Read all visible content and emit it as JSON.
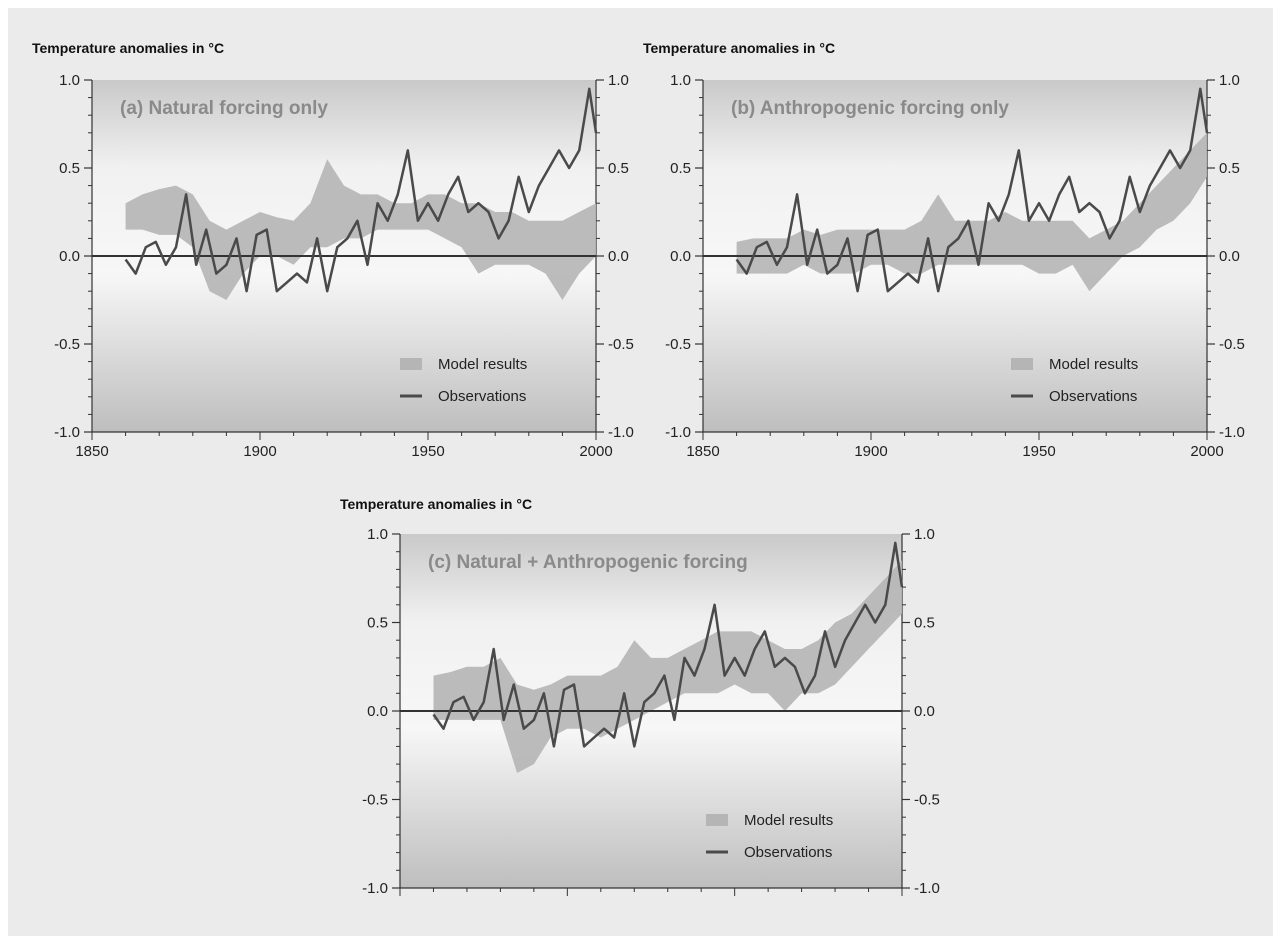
{
  "figure": {
    "panels": [
      {
        "id": "a",
        "ylabel": "Temperature anomalies in °C",
        "title": "(a) Natural forcing only",
        "legend": {
          "model": "Model results",
          "obs": "Observations"
        },
        "xticks": [
          "1850",
          "1900",
          "1950",
          "2000"
        ],
        "yticks": [
          "1.0",
          "0.5",
          "0.0",
          "-0.5",
          "-1.0"
        ]
      },
      {
        "id": "b",
        "ylabel": "Temperature anomalies in °C",
        "title": "(b) Anthropogenic forcing only",
        "legend": {
          "model": "Model results",
          "obs": "Observations"
        },
        "xticks": [
          "1850",
          "1900",
          "1950",
          "2000"
        ],
        "yticks": [
          "1.0",
          "0.5",
          "0.0",
          "-0.5",
          "-1.0"
        ]
      },
      {
        "id": "c",
        "ylabel": "Temperature anomalies in °C",
        "title": "(c) Natural + Anthropogenic forcing",
        "legend": {
          "model": "Model results",
          "obs": "Observations"
        },
        "xticks": [],
        "yticks": [
          "1.0",
          "0.5",
          "0.0",
          "-0.5",
          "-1.0"
        ]
      }
    ]
  },
  "chart_data": [
    {
      "type": "area",
      "title": "(a) Natural forcing only",
      "ylabel": "Temperature anomalies in °C",
      "xlim": [
        1850,
        2000
      ],
      "ylim": [
        -1.0,
        1.0
      ],
      "legend_position": "bottom-right",
      "colors": {
        "model": "#b5b5b5",
        "obs": "#4a4a4a"
      },
      "series": [
        {
          "name": "Model results",
          "kind": "band",
          "x": [
            1860,
            1865,
            1870,
            1875,
            1880,
            1885,
            1890,
            1895,
            1900,
            1905,
            1910,
            1915,
            1920,
            1925,
            1930,
            1935,
            1940,
            1945,
            1950,
            1955,
            1960,
            1965,
            1970,
            1975,
            1980,
            1985,
            1990,
            1995,
            2000
          ],
          "low": [
            0.15,
            0.15,
            0.12,
            0.12,
            0.05,
            -0.2,
            -0.25,
            -0.1,
            0.0,
            0.0,
            -0.05,
            0.05,
            0.05,
            0.1,
            0.1,
            0.15,
            0.15,
            0.15,
            0.15,
            0.1,
            0.05,
            -0.1,
            -0.05,
            -0.05,
            -0.05,
            -0.1,
            -0.25,
            -0.1,
            0.0
          ],
          "high": [
            0.3,
            0.35,
            0.38,
            0.4,
            0.35,
            0.2,
            0.15,
            0.2,
            0.25,
            0.22,
            0.2,
            0.3,
            0.55,
            0.4,
            0.35,
            0.35,
            0.3,
            0.3,
            0.35,
            0.35,
            0.3,
            0.3,
            0.25,
            0.25,
            0.2,
            0.2,
            0.2,
            0.25,
            0.3
          ]
        },
        {
          "name": "Observations",
          "kind": "line",
          "x": [
            1860,
            1863,
            1866,
            1869,
            1872,
            1875,
            1878,
            1881,
            1884,
            1887,
            1890,
            1893,
            1896,
            1899,
            1902,
            1905,
            1908,
            1911,
            1914,
            1917,
            1920,
            1923,
            1926,
            1929,
            1932,
            1935,
            1938,
            1941,
            1944,
            1947,
            1950,
            1953,
            1956,
            1959,
            1962,
            1965,
            1968,
            1971,
            1974,
            1977,
            1980,
            1983,
            1986,
            1989,
            1992,
            1995,
            1998,
            2000
          ],
          "y": [
            -0.02,
            -0.1,
            0.05,
            0.08,
            -0.05,
            0.05,
            0.35,
            -0.05,
            0.15,
            -0.1,
            -0.05,
            0.1,
            -0.2,
            0.12,
            0.15,
            -0.2,
            -0.15,
            -0.1,
            -0.15,
            0.1,
            -0.2,
            0.05,
            0.1,
            0.2,
            -0.05,
            0.3,
            0.2,
            0.35,
            0.6,
            0.2,
            0.3,
            0.2,
            0.35,
            0.45,
            0.25,
            0.3,
            0.25,
            0.1,
            0.2,
            0.45,
            0.25,
            0.4,
            0.5,
            0.6,
            0.5,
            0.6,
            0.95,
            0.7
          ]
        }
      ]
    },
    {
      "type": "area",
      "title": "(b) Anthropogenic forcing only",
      "ylabel": "Temperature anomalies in °C",
      "xlim": [
        1850,
        2000
      ],
      "ylim": [
        -1.0,
        1.0
      ],
      "legend_position": "bottom-right",
      "colors": {
        "model": "#b5b5b5",
        "obs": "#4a4a4a"
      },
      "series": [
        {
          "name": "Model results",
          "kind": "band",
          "x": [
            1860,
            1865,
            1870,
            1875,
            1880,
            1885,
            1890,
            1895,
            1900,
            1905,
            1910,
            1915,
            1920,
            1925,
            1930,
            1935,
            1940,
            1945,
            1950,
            1955,
            1960,
            1965,
            1970,
            1975,
            1980,
            1985,
            1990,
            1995,
            2000
          ],
          "low": [
            -0.1,
            -0.1,
            -0.1,
            -0.1,
            -0.05,
            -0.1,
            -0.1,
            -0.1,
            -0.05,
            -0.05,
            -0.1,
            -0.1,
            -0.05,
            -0.05,
            -0.05,
            -0.05,
            -0.05,
            -0.05,
            -0.1,
            -0.1,
            -0.05,
            -0.2,
            -0.1,
            0.0,
            0.05,
            0.15,
            0.2,
            0.3,
            0.45
          ],
          "high": [
            0.08,
            0.1,
            0.1,
            0.1,
            0.15,
            0.12,
            0.15,
            0.15,
            0.15,
            0.15,
            0.15,
            0.2,
            0.35,
            0.2,
            0.2,
            0.2,
            0.25,
            0.2,
            0.2,
            0.2,
            0.2,
            0.1,
            0.15,
            0.2,
            0.3,
            0.4,
            0.5,
            0.6,
            0.7
          ]
        },
        {
          "name": "Observations",
          "kind": "line",
          "x": [
            1860,
            1863,
            1866,
            1869,
            1872,
            1875,
            1878,
            1881,
            1884,
            1887,
            1890,
            1893,
            1896,
            1899,
            1902,
            1905,
            1908,
            1911,
            1914,
            1917,
            1920,
            1923,
            1926,
            1929,
            1932,
            1935,
            1938,
            1941,
            1944,
            1947,
            1950,
            1953,
            1956,
            1959,
            1962,
            1965,
            1968,
            1971,
            1974,
            1977,
            1980,
            1983,
            1986,
            1989,
            1992,
            1995,
            1998,
            2000
          ],
          "y": [
            -0.02,
            -0.1,
            0.05,
            0.08,
            -0.05,
            0.05,
            0.35,
            -0.05,
            0.15,
            -0.1,
            -0.05,
            0.1,
            -0.2,
            0.12,
            0.15,
            -0.2,
            -0.15,
            -0.1,
            -0.15,
            0.1,
            -0.2,
            0.05,
            0.1,
            0.2,
            -0.05,
            0.3,
            0.2,
            0.35,
            0.6,
            0.2,
            0.3,
            0.2,
            0.35,
            0.45,
            0.25,
            0.3,
            0.25,
            0.1,
            0.2,
            0.45,
            0.25,
            0.4,
            0.5,
            0.6,
            0.5,
            0.6,
            0.95,
            0.7
          ]
        }
      ]
    },
    {
      "type": "area",
      "title": "(c) Natural + Anthropogenic forcing",
      "ylabel": "Temperature anomalies in °C",
      "xlim": [
        1850,
        2000
      ],
      "ylim": [
        -1.0,
        1.0
      ],
      "legend_position": "bottom-right",
      "colors": {
        "model": "#b5b5b5",
        "obs": "#4a4a4a"
      },
      "series": [
        {
          "name": "Model results",
          "kind": "band",
          "x": [
            1860,
            1865,
            1870,
            1875,
            1880,
            1885,
            1890,
            1895,
            1900,
            1905,
            1910,
            1915,
            1920,
            1925,
            1930,
            1935,
            1940,
            1945,
            1950,
            1955,
            1960,
            1965,
            1970,
            1975,
            1980,
            1985,
            1990,
            1995,
            2000
          ],
          "low": [
            -0.05,
            -0.05,
            -0.05,
            -0.05,
            -0.05,
            -0.35,
            -0.3,
            -0.15,
            -0.1,
            -0.1,
            -0.15,
            -0.1,
            -0.05,
            0.0,
            0.05,
            0.1,
            0.1,
            0.1,
            0.15,
            0.1,
            0.1,
            0.0,
            0.1,
            0.1,
            0.15,
            0.25,
            0.35,
            0.45,
            0.55
          ],
          "high": [
            0.2,
            0.22,
            0.25,
            0.25,
            0.3,
            0.15,
            0.12,
            0.15,
            0.2,
            0.2,
            0.2,
            0.25,
            0.4,
            0.3,
            0.3,
            0.35,
            0.4,
            0.45,
            0.45,
            0.45,
            0.4,
            0.35,
            0.35,
            0.4,
            0.5,
            0.55,
            0.65,
            0.75,
            0.85
          ]
        },
        {
          "name": "Observations",
          "kind": "line",
          "x": [
            1860,
            1863,
            1866,
            1869,
            1872,
            1875,
            1878,
            1881,
            1884,
            1887,
            1890,
            1893,
            1896,
            1899,
            1902,
            1905,
            1908,
            1911,
            1914,
            1917,
            1920,
            1923,
            1926,
            1929,
            1932,
            1935,
            1938,
            1941,
            1944,
            1947,
            1950,
            1953,
            1956,
            1959,
            1962,
            1965,
            1968,
            1971,
            1974,
            1977,
            1980,
            1983,
            1986,
            1989,
            1992,
            1995,
            1998,
            2000
          ],
          "y": [
            -0.02,
            -0.1,
            0.05,
            0.08,
            -0.05,
            0.05,
            0.35,
            -0.05,
            0.15,
            -0.1,
            -0.05,
            0.1,
            -0.2,
            0.12,
            0.15,
            -0.2,
            -0.15,
            -0.1,
            -0.15,
            0.1,
            -0.2,
            0.05,
            0.1,
            0.2,
            -0.05,
            0.3,
            0.2,
            0.35,
            0.6,
            0.2,
            0.3,
            0.2,
            0.35,
            0.45,
            0.25,
            0.3,
            0.25,
            0.1,
            0.2,
            0.45,
            0.25,
            0.4,
            0.5,
            0.6,
            0.5,
            0.6,
            0.95,
            0.7
          ]
        }
      ]
    }
  ]
}
